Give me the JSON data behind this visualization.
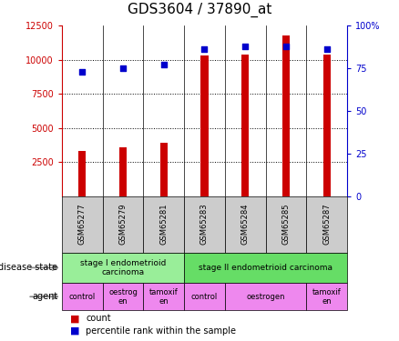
{
  "title": "GDS3604 / 37890_at",
  "samples": [
    "GSM65277",
    "GSM65279",
    "GSM65281",
    "GSM65283",
    "GSM65284",
    "GSM65285",
    "GSM65287"
  ],
  "counts": [
    3300,
    3600,
    3900,
    10300,
    10350,
    11800,
    10400
  ],
  "percentile_ranks": [
    73,
    75,
    77,
    86,
    88,
    88,
    86
  ],
  "ylim_left": [
    0,
    12500
  ],
  "ylim_right": [
    0,
    100
  ],
  "yticks_left": [
    2500,
    5000,
    7500,
    10000,
    12500
  ],
  "yticks_right": [
    0,
    25,
    50,
    75,
    100
  ],
  "ytick_labels_right": [
    "0",
    "25",
    "50",
    "75",
    "100%"
  ],
  "bar_color": "#cc0000",
  "dot_color": "#0000cc",
  "disease_states": [
    {
      "label": "stage I endometrioid\ncarcinoma",
      "start": 0,
      "end": 3,
      "color": "#99ee99"
    },
    {
      "label": "stage II endometrioid carcinoma",
      "start": 3,
      "end": 7,
      "color": "#66dd66"
    }
  ],
  "agents": [
    {
      "label": "control",
      "start": 0,
      "end": 1,
      "color": "#ee88ee"
    },
    {
      "label": "oestrog\nen",
      "start": 1,
      "end": 2,
      "color": "#ee88ee"
    },
    {
      "label": "tamoxif\nen",
      "start": 2,
      "end": 3,
      "color": "#ee88ee"
    },
    {
      "label": "control",
      "start": 3,
      "end": 4,
      "color": "#ee88ee"
    },
    {
      "label": "oestrogen",
      "start": 4,
      "end": 6,
      "color": "#ee88ee"
    },
    {
      "label": "tamoxif\nen",
      "start": 6,
      "end": 7,
      "color": "#ee88ee"
    }
  ],
  "title_fontsize": 11,
  "tick_fontsize": 7,
  "sample_fontsize": 6,
  "annot_fontsize": 7,
  "legend_fontsize": 7
}
